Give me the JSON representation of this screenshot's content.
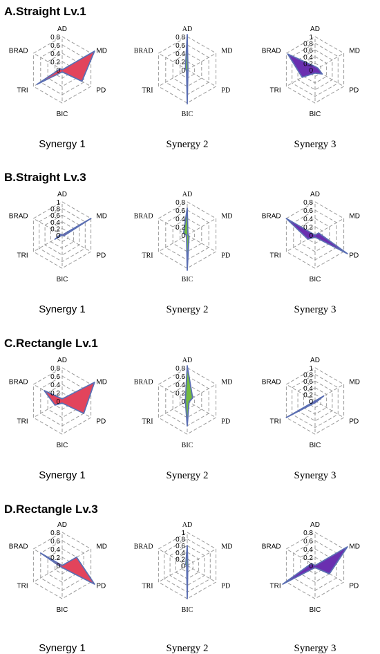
{
  "colors": {
    "synergy_1": "#e2445c",
    "synergy_2": "#72bb3f",
    "synergy_3": "#6a2fb0",
    "outline": "#5b6fb3",
    "grid": "#9a9a9a"
  },
  "chart_data": [
    {
      "type": "radar",
      "section": "A.Straight Lv.1",
      "title": "Synergy 1",
      "categories": [
        "AD",
        "MD",
        "PD",
        "BIC",
        "TRI",
        "BRAD"
      ],
      "ticks": [
        "0",
        "0.2",
        "0.4",
        "0.6",
        "0.8"
      ],
      "rmax": 0.9,
      "values": [
        0.0,
        0.9,
        0.55,
        0.05,
        0.7,
        0.05
      ],
      "color": "#e2445c"
    },
    {
      "type": "radar",
      "section": "A.Straight Lv.1",
      "title": "Synergy 2",
      "categories": [
        "AD",
        "MD",
        "PD",
        "BIC",
        "TRI",
        "BRAD"
      ],
      "ticks": [
        "0",
        "0.2",
        "0.4",
        "0.6",
        "0.8"
      ],
      "rmax": 0.85,
      "values": [
        0.85,
        0.02,
        0.02,
        0.82,
        0.02,
        0.05
      ],
      "color": "#72bb3f"
    },
    {
      "type": "radar",
      "section": "A.Straight Lv.1",
      "title": "Synergy 3",
      "categories": [
        "AD",
        "MD",
        "PD",
        "BIC",
        "TRI",
        "BRAD"
      ],
      "ticks": [
        "0",
        "0.2",
        "0.4",
        "0.6",
        "0.8",
        "1"
      ],
      "rmax": 1.1,
      "values": [
        0.1,
        0.1,
        0.25,
        0.1,
        0.45,
        0.95
      ],
      "color": "#6a2fb0"
    },
    {
      "type": "radar",
      "section": "B.Straight Lv.3",
      "title": "Synergy 1",
      "categories": [
        "AD",
        "MD",
        "PD",
        "BIC",
        "TRI",
        "BRAD"
      ],
      "ticks": [
        "0",
        "0.2",
        "0.4",
        "0.6",
        "0.8",
        "1"
      ],
      "rmax": 1.1,
      "values": [
        0.0,
        1.0,
        0.05,
        0.0,
        0.25,
        0.05
      ],
      "color": "#e2445c"
    },
    {
      "type": "radar",
      "section": "B.Straight Lv.3",
      "title": "Synergy 2",
      "categories": [
        "AD",
        "MD",
        "PD",
        "BIC",
        "TRI",
        "BRAD"
      ],
      "ticks": [
        "0",
        "0.2",
        "0.4",
        "0.6",
        "0.8"
      ],
      "rmax": 0.85,
      "values": [
        0.65,
        0.02,
        0.05,
        0.85,
        0.02,
        0.1
      ],
      "color": "#72bb3f"
    },
    {
      "type": "radar",
      "section": "B.Straight Lv.3",
      "title": "Synergy 3",
      "categories": [
        "AD",
        "MD",
        "PD",
        "BIC",
        "TRI",
        "BRAD"
      ],
      "ticks": [
        "0",
        "0.2",
        "0.4",
        "0.6",
        "0.8"
      ],
      "rmax": 0.9,
      "values": [
        0.0,
        0.1,
        0.9,
        0.05,
        0.2,
        0.8
      ],
      "color": "#6a2fb0"
    },
    {
      "type": "radar",
      "section": "C.Rectangle Lv.1",
      "title": "Synergy 1",
      "categories": [
        "AD",
        "MD",
        "PD",
        "BIC",
        "TRI",
        "BRAD"
      ],
      "ticks": [
        "0",
        "0.2",
        "0.4",
        "0.6",
        "0.8"
      ],
      "rmax": 0.9,
      "values": [
        0.05,
        0.9,
        0.6,
        0.05,
        0.2,
        0.5
      ],
      "color": "#e2445c"
    },
    {
      "type": "radar",
      "section": "C.Rectangle Lv.1",
      "title": "Synergy 2",
      "categories": [
        "AD",
        "MD",
        "PD",
        "BIC",
        "TRI",
        "BRAD"
      ],
      "ticks": [
        "0",
        "0.2",
        "0.4",
        "0.6",
        "0.8"
      ],
      "rmax": 0.85,
      "values": [
        0.85,
        0.15,
        0.05,
        0.6,
        0.05,
        0.05
      ],
      "color": "#72bb3f"
    },
    {
      "type": "radar",
      "section": "C.Rectangle Lv.1",
      "title": "Synergy 3",
      "categories": [
        "AD",
        "MD",
        "PD",
        "BIC",
        "TRI",
        "BRAD"
      ],
      "ticks": [
        "0",
        "0.2",
        "0.4",
        "0.6",
        "0.8",
        "1"
      ],
      "rmax": 1.1,
      "values": [
        0.0,
        0.3,
        0.05,
        0.05,
        1.0,
        0.0
      ],
      "color": "#6a2fb0"
    },
    {
      "type": "radar",
      "section": "D.Rectangle Lv.3",
      "title": "Synergy 1",
      "categories": [
        "AD",
        "MD",
        "PD",
        "BIC",
        "TRI",
        "BRAD"
      ],
      "ticks": [
        "0",
        "0.2",
        "0.4",
        "0.6",
        "0.8"
      ],
      "rmax": 0.9,
      "values": [
        0.0,
        0.4,
        0.9,
        0.05,
        0.05,
        0.6
      ],
      "color": "#e2445c"
    },
    {
      "type": "radar",
      "section": "D.Rectangle Lv.3",
      "title": "Synergy 2",
      "categories": [
        "AD",
        "MD",
        "PD",
        "BIC",
        "TRI",
        "BRAD"
      ],
      "ticks": [
        "0",
        "0.2",
        "0.4",
        "0.6",
        "0.8",
        "1"
      ],
      "rmax": 1.1,
      "values": [
        0.6,
        0.02,
        0.02,
        1.0,
        0.02,
        0.05
      ],
      "color": "#72bb3f"
    },
    {
      "type": "radar",
      "section": "D.Rectangle Lv.3",
      "title": "Synergy 3",
      "categories": [
        "AD",
        "MD",
        "PD",
        "BIC",
        "TRI",
        "BRAD"
      ],
      "ticks": [
        "0",
        "0.2",
        "0.4",
        "0.6",
        "0.8"
      ],
      "rmax": 0.9,
      "values": [
        0.0,
        0.9,
        0.4,
        0.05,
        0.9,
        0.1
      ],
      "color": "#6a2fb0"
    }
  ],
  "sections": [
    {
      "title": "A.Straight Lv.1"
    },
    {
      "title": "B.Straight Lv.3"
    },
    {
      "title": "C.Rectangle Lv.1"
    },
    {
      "title": "D.Rectangle Lv.3"
    }
  ]
}
